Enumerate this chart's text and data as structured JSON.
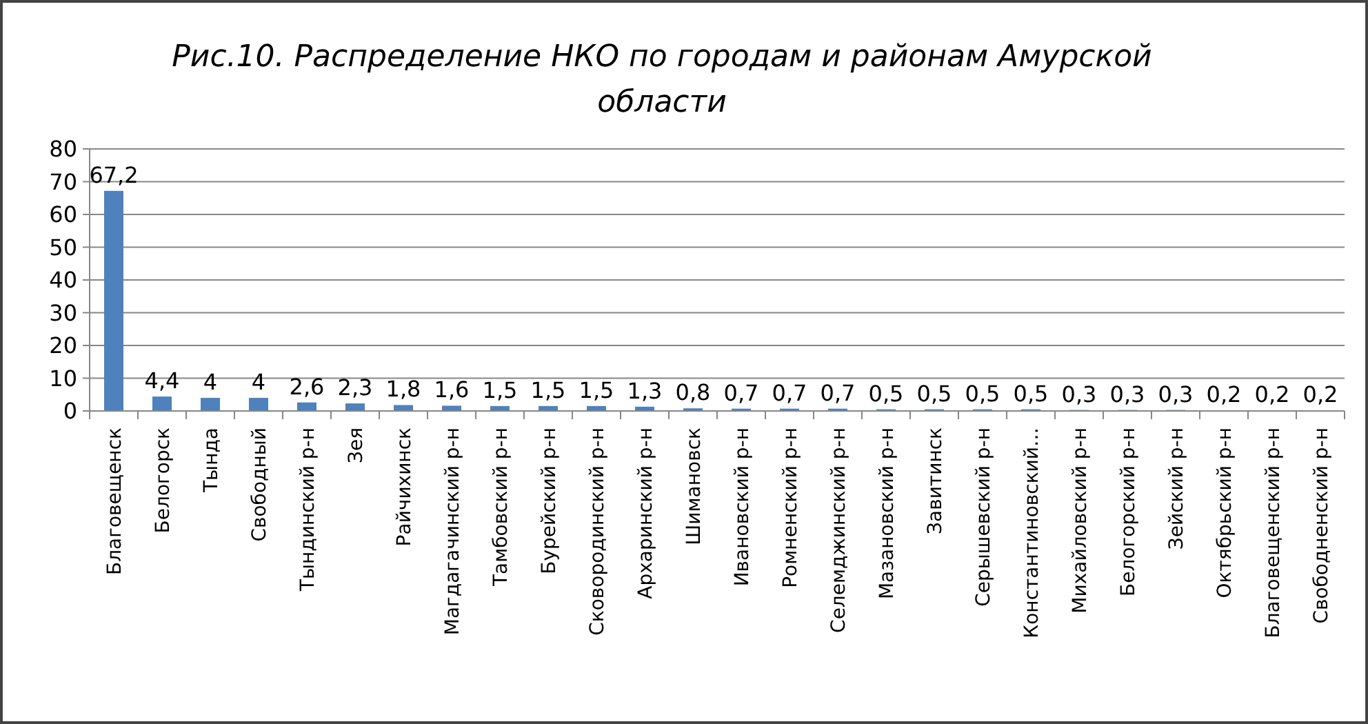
{
  "chart_data": {
    "type": "bar",
    "title": "Рис.10. Распределение НКО по городам и районам Амурской области",
    "categories": [
      "Благовещенск",
      "Белогорск",
      "Тында",
      "Свободный",
      "Тындинский р-н",
      "Зея",
      "Райчихинск",
      "Магдагачинский р-н",
      "Тамбовский р-н",
      "Бурейский р-н",
      "Сковородинский р-н",
      "Архаринский р-н",
      "Шимановск",
      "Ивановский р-н",
      "Ромненский р-н",
      "Селемджинский р-н",
      "Мазановский р-н",
      "Завитинск",
      "Серышевский р-н",
      "Константиновский…",
      "Михайловский р-н",
      "Белогорский р-н",
      "Зейский р-н",
      "Октябрьский р-н",
      "Благовещенский р-н",
      "Свободненский р-н"
    ],
    "values": [
      67.2,
      4.4,
      4,
      4,
      2.6,
      2.3,
      1.8,
      1.6,
      1.5,
      1.5,
      1.5,
      1.3,
      0.8,
      0.7,
      0.7,
      0.7,
      0.5,
      0.5,
      0.5,
      0.5,
      0.3,
      0.3,
      0.3,
      0.2,
      0.2,
      0.2
    ],
    "value_labels": [
      "67,2",
      "4,4",
      "4",
      "4",
      "2,6",
      "2,3",
      "1,8",
      "1,6",
      "1,5",
      "1,5",
      "1,5",
      "1,3",
      "0,8",
      "0,7",
      "0,7",
      "0,7",
      "0,5",
      "0,5",
      "0,5",
      "0,5",
      "0,3",
      "0,3",
      "0,3",
      "0,2",
      "0,2",
      "0,2"
    ],
    "color": "#4f81bd",
    "ylim": [
      0,
      80
    ],
    "yticks": [
      0,
      10,
      20,
      30,
      40,
      50,
      60,
      70,
      80
    ],
    "grid": "y"
  }
}
